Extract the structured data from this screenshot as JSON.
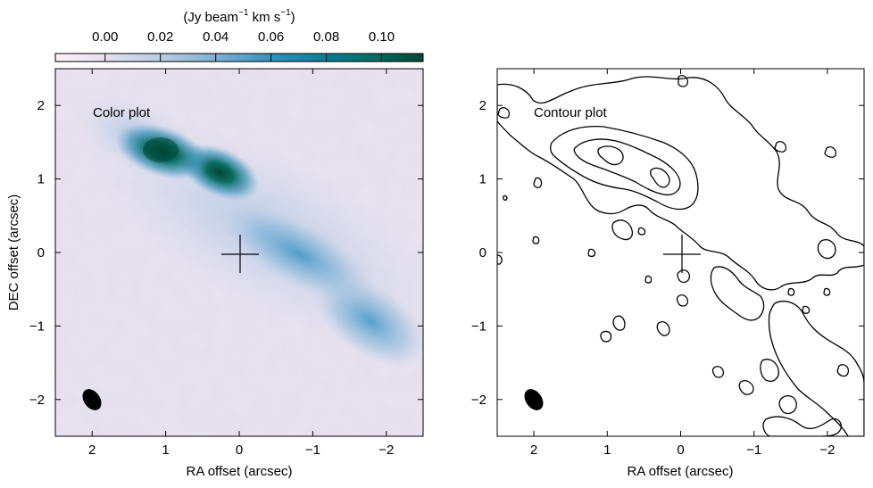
{
  "figure": {
    "colorbar": {
      "label_base": "(Jy beam",
      "label_exp1": "−1",
      "label_mid": " km s",
      "label_exp2": "−1",
      "label_end": ")",
      "ticks": [
        0.0,
        0.02,
        0.04,
        0.06,
        0.08,
        0.1
      ],
      "tick_labels": [
        "0.00",
        "0.02",
        "0.04",
        "0.06",
        "0.08",
        "0.10"
      ],
      "range": [
        -0.018,
        0.115
      ],
      "colors": [
        "#fbf1f6",
        "#e4def0",
        "#b7c9e2",
        "#75aed2",
        "#2d8fbf",
        "#047c8f",
        "#016a5c",
        "#014636"
      ]
    },
    "panels": [
      {
        "id": "left",
        "annotation": "Color plot",
        "xlabel": "RA offset (arcsec)",
        "ylabel": "DEC offset (arcsec)"
      },
      {
        "id": "right",
        "annotation": "Contour plot",
        "xlabel": "RA offset (arcsec)",
        "ylabel": ""
      }
    ],
    "x_tick_labels": [
      "2",
      "1",
      "0",
      "−1",
      "−2"
    ],
    "y_tick_labels": [
      "2",
      "1",
      "0",
      "−1",
      "−2"
    ]
  },
  "chart_data": [
    {
      "type": "heatmap",
      "title": "",
      "annotation": "Color plot",
      "xlabel": "RA offset (arcsec)",
      "ylabel": "DEC offset (arcsec)",
      "xlim": [
        2.5,
        -2.5
      ],
      "ylim": [
        -2.5,
        2.5
      ],
      "x_ticks": [
        2,
        1,
        0,
        -1,
        -2
      ],
      "y_ticks": [
        2,
        1,
        0,
        -1,
        -2
      ],
      "colorbar_label": "(Jy beam−1 km s−1)",
      "colorbar_range": [
        -0.018,
        0.115
      ],
      "colorbar_ticks": [
        0.0,
        0.02,
        0.04,
        0.06,
        0.08,
        0.1
      ],
      "emission_components": [
        {
          "ra": 1.05,
          "dec": 1.37,
          "peak": 0.11
        },
        {
          "ra": 0.3,
          "dec": 0.95,
          "peak": 0.1
        },
        {
          "ra": -0.8,
          "dec": 0.35,
          "peak": 0.05
        },
        {
          "ra": -1.6,
          "dec": -0.5,
          "peak": 0.04
        }
      ],
      "center_marker": {
        "ra": 0,
        "dec": 0
      },
      "beam": {
        "ra": 2.0,
        "dec": -1.97,
        "major": 0.3,
        "minor": 0.2,
        "pa_deg": 30
      }
    },
    {
      "type": "contour",
      "title": "",
      "annotation": "Contour plot",
      "xlabel": "RA offset (arcsec)",
      "ylabel": "",
      "xlim": [
        2.5,
        -2.5
      ],
      "ylim": [
        -2.5,
        2.5
      ],
      "x_ticks": [
        2,
        1,
        0,
        -1,
        -2
      ],
      "y_ticks": [
        2,
        1,
        0,
        -1,
        -2
      ],
      "contour_levels": [
        0.02,
        0.05,
        0.08
      ],
      "center_marker": {
        "ra": 0,
        "dec": 0
      },
      "beam": {
        "ra": 2.0,
        "dec": -1.97,
        "major": 0.3,
        "minor": 0.2,
        "pa_deg": 30
      }
    }
  ]
}
